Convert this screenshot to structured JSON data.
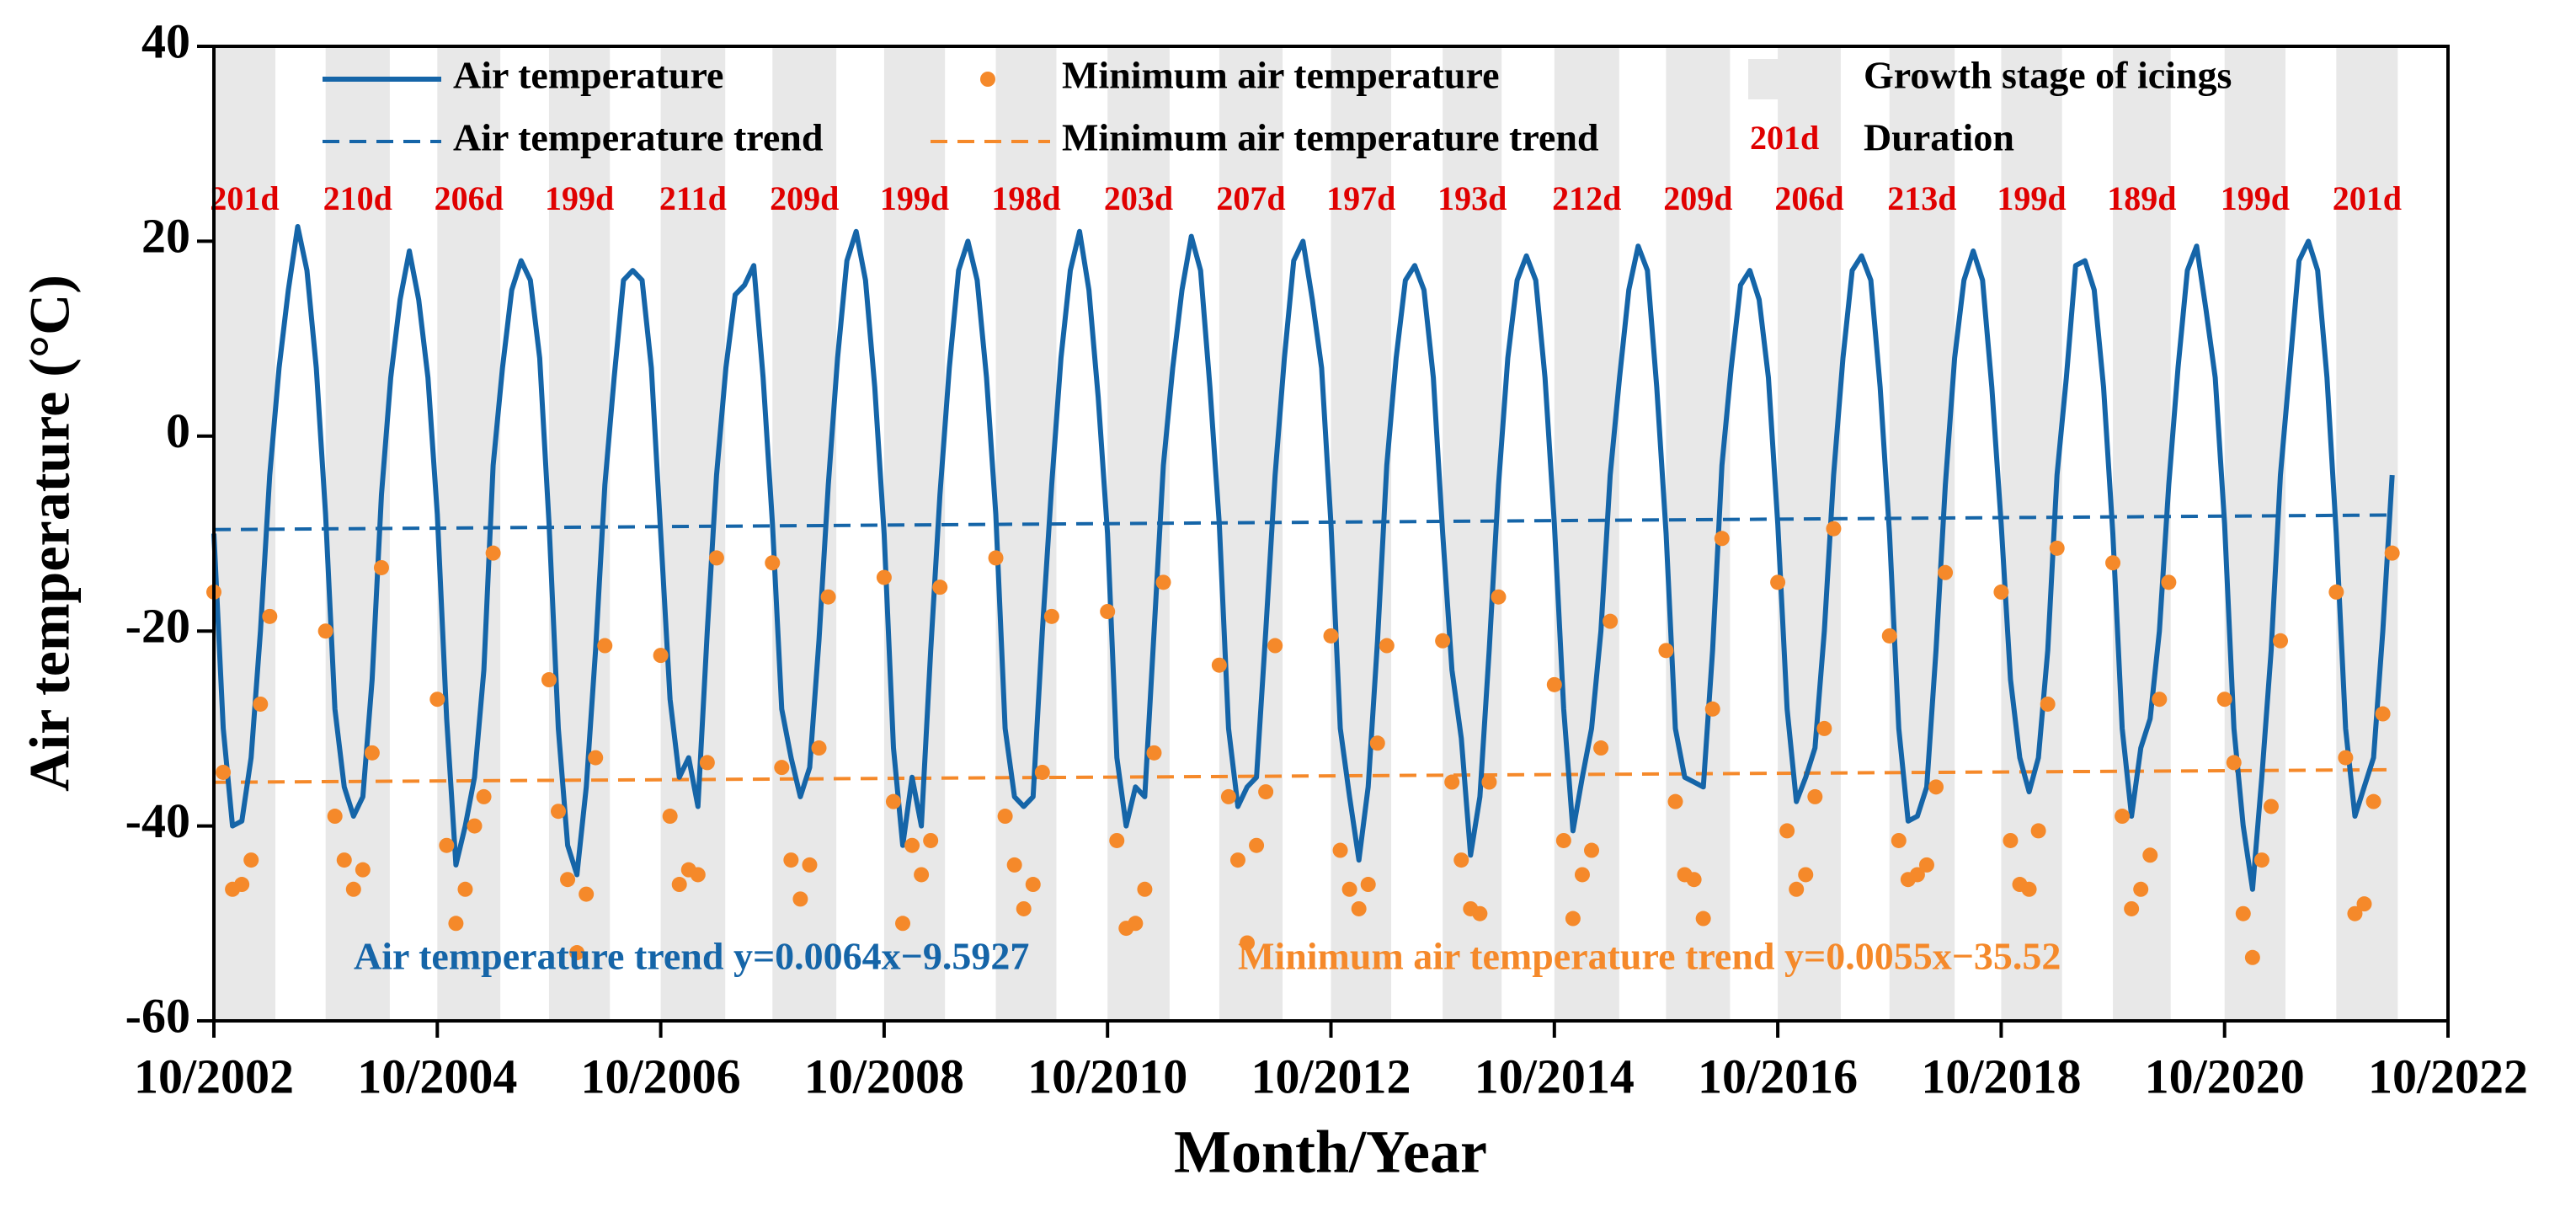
{
  "chart_data": {
    "type": "line",
    "xlabel": "Month/Year",
    "ylabel": "Air temperature (°C)",
    "ylim": [
      -60,
      40
    ],
    "yticks": [
      -60,
      -40,
      -20,
      0,
      20,
      40
    ],
    "xlim": [
      "10/2002",
      "10/2022"
    ],
    "xticks": [
      "10/2002",
      "10/2004",
      "10/2006",
      "10/2008",
      "10/2010",
      "10/2012",
      "10/2014",
      "10/2016",
      "10/2018",
      "10/2020",
      "10/2022"
    ],
    "x": [
      "10/2002",
      "11/2002",
      "12/2002",
      "01/2003",
      "02/2003",
      "03/2003",
      "04/2003",
      "05/2003",
      "06/2003",
      "07/2003",
      "08/2003",
      "09/2003",
      "10/2003",
      "11/2003",
      "12/2003",
      "01/2004",
      "02/2004",
      "03/2004",
      "04/2004",
      "05/2004",
      "06/2004",
      "07/2004",
      "08/2004",
      "09/2004",
      "10/2004",
      "11/2004",
      "12/2004",
      "01/2005",
      "02/2005",
      "03/2005",
      "04/2005",
      "05/2005",
      "06/2005",
      "07/2005",
      "08/2005",
      "09/2005",
      "10/2005",
      "11/2005",
      "12/2005",
      "01/2006",
      "02/2006",
      "03/2006",
      "04/2006",
      "05/2006",
      "06/2006",
      "07/2006",
      "08/2006",
      "09/2006",
      "10/2006",
      "11/2006",
      "12/2006",
      "01/2007",
      "02/2007",
      "03/2007",
      "04/2007",
      "05/2007",
      "06/2007",
      "07/2007",
      "08/2007",
      "09/2007",
      "10/2007",
      "11/2007",
      "12/2007",
      "01/2008",
      "02/2008",
      "03/2008",
      "04/2008",
      "05/2008",
      "06/2008",
      "07/2008",
      "08/2008",
      "09/2008",
      "10/2008",
      "11/2008",
      "12/2008",
      "01/2009",
      "02/2009",
      "03/2009",
      "04/2009",
      "05/2009",
      "06/2009",
      "07/2009",
      "08/2009",
      "09/2009",
      "10/2009",
      "11/2009",
      "12/2009",
      "01/2010",
      "02/2010",
      "03/2010",
      "04/2010",
      "05/2010",
      "06/2010",
      "07/2010",
      "08/2010",
      "09/2010",
      "10/2010",
      "11/2010",
      "12/2010",
      "01/2011",
      "02/2011",
      "03/2011",
      "04/2011",
      "05/2011",
      "06/2011",
      "07/2011",
      "08/2011",
      "09/2011",
      "10/2011",
      "11/2011",
      "12/2011",
      "01/2012",
      "02/2012",
      "03/2012",
      "04/2012",
      "05/2012",
      "06/2012",
      "07/2012",
      "08/2012",
      "09/2012",
      "10/2012",
      "11/2012",
      "12/2012",
      "01/2013",
      "02/2013",
      "03/2013",
      "04/2013",
      "05/2013",
      "06/2013",
      "07/2013",
      "08/2013",
      "09/2013",
      "10/2013",
      "11/2013",
      "12/2013",
      "01/2014",
      "02/2014",
      "03/2014",
      "04/2014",
      "05/2014",
      "06/2014",
      "07/2014",
      "08/2014",
      "09/2014",
      "10/2014",
      "11/2014",
      "12/2014",
      "01/2015",
      "02/2015",
      "03/2015",
      "04/2015",
      "05/2015",
      "06/2015",
      "07/2015",
      "08/2015",
      "09/2015",
      "10/2015",
      "11/2015",
      "12/2015",
      "01/2016",
      "02/2016",
      "03/2016",
      "04/2016",
      "05/2016",
      "06/2016",
      "07/2016",
      "08/2016",
      "09/2016",
      "10/2016",
      "11/2016",
      "12/2016",
      "01/2017",
      "02/2017",
      "03/2017",
      "04/2017",
      "05/2017",
      "06/2017",
      "07/2017",
      "08/2017",
      "09/2017",
      "10/2017",
      "11/2017",
      "12/2017",
      "01/2018",
      "02/2018",
      "03/2018",
      "04/2018",
      "05/2018",
      "06/2018",
      "07/2018",
      "08/2018",
      "09/2018",
      "10/2018",
      "11/2018",
      "12/2018",
      "01/2019",
      "02/2019",
      "03/2019",
      "04/2019",
      "05/2019",
      "06/2019",
      "07/2019",
      "08/2019",
      "09/2019",
      "10/2019",
      "11/2019",
      "12/2019",
      "01/2020",
      "02/2020",
      "03/2020",
      "04/2020",
      "05/2020",
      "06/2020",
      "07/2020",
      "08/2020",
      "09/2020",
      "10/2020",
      "11/2020",
      "12/2020",
      "01/2021",
      "02/2021",
      "03/2021",
      "04/2021",
      "05/2021",
      "06/2021",
      "07/2021",
      "08/2021",
      "09/2021",
      "10/2021",
      "11/2021",
      "12/2021",
      "01/2022",
      "02/2022",
      "03/2022",
      "04/2022"
    ],
    "series": [
      {
        "name": "Air temperature",
        "type": "line",
        "color": "#1565a8",
        "values": [
          -10,
          -30,
          -40,
          -39.5,
          -33,
          -20,
          -4,
          7,
          15,
          21.5,
          17,
          7,
          -8,
          -28,
          -36,
          -39,
          -37,
          -25,
          -6,
          6,
          14,
          19,
          14,
          6,
          -8,
          -29,
          -44,
          -40,
          -35,
          -24,
          -3,
          7,
          15,
          18,
          16,
          8,
          -9,
          -30,
          -42,
          -45,
          -36,
          -22,
          -5,
          6,
          16,
          17,
          16,
          7,
          -10,
          -27,
          -35,
          -33,
          -38,
          -20,
          -4,
          7,
          14.5,
          15.5,
          17.5,
          6,
          -9,
          -28,
          -33,
          -37,
          -34,
          -21,
          -5,
          8,
          18,
          21,
          16,
          5,
          -10,
          -32,
          -42,
          -35,
          -40,
          -22,
          -6,
          7,
          17,
          20,
          16,
          6,
          -8,
          -30,
          -37,
          -38,
          -37,
          -20,
          -5,
          8,
          17,
          21,
          15,
          4,
          -10,
          -33,
          -40,
          -36,
          -37,
          -20,
          -3,
          7,
          15,
          20.5,
          17,
          5,
          -9,
          -30,
          -38,
          -36,
          -35,
          -20,
          -4,
          8,
          18,
          20,
          14,
          7,
          -9,
          -30,
          -37,
          -43.5,
          -36,
          -21,
          -3,
          8,
          16,
          17.5,
          15,
          6,
          -10,
          -24,
          -31,
          -43,
          -37,
          -22,
          -5,
          8,
          16,
          18.5,
          16,
          6,
          -9,
          -28,
          -40.5,
          -35,
          -30,
          -20,
          -4,
          6,
          15,
          19.5,
          17,
          5,
          -10,
          -30,
          -35,
          -35.5,
          -36,
          -22,
          -3,
          7,
          15.5,
          17,
          14,
          6,
          -9,
          -28,
          -37.5,
          -35,
          -32,
          -20,
          -4,
          8,
          17,
          18.5,
          16,
          5,
          -10,
          -30,
          -39.5,
          -39,
          -36,
          -22,
          -5,
          8,
          16,
          19,
          16,
          5,
          -9,
          -25,
          -33,
          -36.5,
          -33,
          -22,
          -4,
          6,
          17.5,
          18,
          15,
          5,
          -10,
          -30,
          -39,
          -32,
          -29,
          -20,
          -5,
          7,
          17,
          19.5,
          13,
          6,
          -9,
          -30,
          -40,
          -46.5,
          -35,
          -22,
          -4,
          7,
          18,
          20,
          17,
          6,
          -10,
          -30,
          -39,
          -36,
          -33,
          -20,
          -4
        ]
      },
      {
        "name": "Minimum air temperature",
        "type": "scatter",
        "color": "#f5892a",
        "values": [
          -16,
          -34.5,
          -46.5,
          -46,
          -43.5,
          -27.5,
          -18.5,
          null,
          null,
          null,
          null,
          null,
          -20,
          -39,
          -43.5,
          -46.5,
          -44.5,
          -32.5,
          -13.5,
          null,
          null,
          null,
          null,
          null,
          -27,
          -42,
          -50,
          -46.5,
          -40,
          -37,
          -12,
          null,
          null,
          null,
          null,
          null,
          -25,
          -38.5,
          -45.5,
          -53,
          -47,
          -33,
          -21.5,
          null,
          null,
          null,
          null,
          null,
          -22.5,
          -39,
          -46,
          -44.5,
          -45,
          -33.5,
          -12.5,
          null,
          null,
          null,
          null,
          null,
          -13,
          -34,
          -43.5,
          -47.5,
          -44,
          -32,
          -16.5,
          null,
          null,
          null,
          null,
          null,
          -14.5,
          -37.5,
          -50,
          -42,
          -45,
          -41.5,
          -15.5,
          null,
          null,
          null,
          null,
          null,
          -12.5,
          -39,
          -44,
          -48.5,
          -46,
          -34.5,
          -18.5,
          null,
          null,
          null,
          null,
          null,
          -18,
          -41.5,
          -50.5,
          -50,
          -46.5,
          -32.5,
          -15,
          null,
          null,
          null,
          null,
          null,
          -23.5,
          -37,
          -43.5,
          -52,
          -42,
          -36.5,
          -21.5,
          null,
          null,
          null,
          null,
          null,
          -20.5,
          -42.5,
          -46.5,
          -48.5,
          -46,
          -31.5,
          -21.5,
          null,
          null,
          null,
          null,
          null,
          -21,
          -35.5,
          -43.5,
          -48.5,
          -49,
          -35.5,
          -16.5,
          null,
          null,
          null,
          null,
          null,
          -25.5,
          -41.5,
          -49.5,
          -45,
          -42.5,
          -32,
          -19,
          null,
          null,
          null,
          null,
          null,
          -22,
          -37.5,
          -45,
          -45.5,
          -49.5,
          -28,
          -10.5,
          null,
          null,
          null,
          null,
          null,
          -15,
          -40.5,
          -46.5,
          -45,
          -37,
          -30,
          -9.5,
          null,
          null,
          null,
          null,
          null,
          -20.5,
          -41.5,
          -45.5,
          -45,
          -44,
          -36,
          -14,
          null,
          null,
          null,
          null,
          null,
          -16,
          -41.5,
          -46,
          -46.5,
          -40.5,
          -27.5,
          -11.5,
          null,
          null,
          null,
          null,
          null,
          -13,
          -39,
          -48.5,
          -46.5,
          -43,
          -27,
          -15,
          null,
          null,
          null,
          null,
          null,
          -27,
          -33.5,
          -49,
          -53.5,
          -43.5,
          -38,
          -21,
          null,
          null,
          null,
          null,
          null,
          -16,
          -33,
          -49,
          -48,
          -37.5,
          -28.5,
          -12
        ]
      }
    ],
    "trends": [
      {
        "name": "Air temperature trend",
        "color": "#1565a8",
        "slope": 0.0064,
        "intercept": -9.5927,
        "equation_label": "Air temperature trend  y=0.0064x−9.5927"
      },
      {
        "name": "Minimum air temperature trend",
        "color": "#f5892a",
        "slope": 0.0055,
        "intercept": -35.52,
        "equation_label": "Minimum air temperature trend y=0.0055x−35.52"
      }
    ],
    "growth_stage": {
      "name": "Growth stage of icings",
      "color": "#e8e8e8",
      "start": [
        "10/2002",
        "10/2003",
        "10/2004",
        "10/2005",
        "10/2006",
        "10/2007",
        "10/2008",
        "10/2009",
        "10/2010",
        "10/2011",
        "10/2012",
        "10/2013",
        "10/2014",
        "10/2015",
        "10/2016",
        "10/2017",
        "10/2018",
        "10/2019",
        "10/2020",
        "10/2021"
      ],
      "durations": [
        201,
        210,
        206,
        199,
        211,
        209,
        199,
        198,
        203,
        207,
        197,
        193,
        212,
        209,
        206,
        213,
        199,
        189,
        199,
        201
      ],
      "duration_labels": [
        "201d",
        "210d",
        "206d",
        "199d",
        "211d",
        "209d",
        "199d",
        "198d",
        "203d",
        "207d",
        "197d",
        "193d",
        "212d",
        "209d",
        "206d",
        "213d",
        "199d",
        "189d",
        "199d",
        "201d"
      ],
      "label_color": "#e00000"
    },
    "duration_legend": {
      "sample": "201d",
      "label": "Duration"
    }
  }
}
